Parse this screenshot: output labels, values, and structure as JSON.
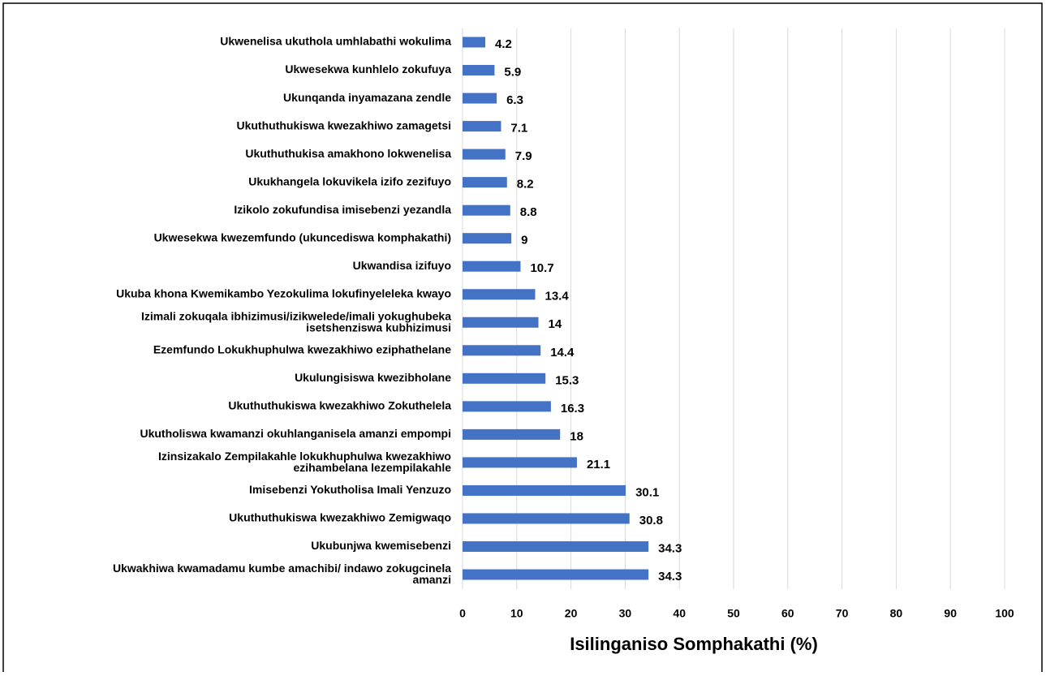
{
  "chart_data": {
    "type": "barh",
    "x_label": "Isilinganiso Somphakathi (%)",
    "categories": [
      "Ukwenelisa ukuthola umhlabathi wokulima",
      "Ukwesekwa kunhlelo zokufuya",
      "Ukunqanda inyamazana zendle",
      "Ukuthuthukiswa kwezakhiwo zamagetsi",
      "Ukuthuthukisa amakhono lokwenelisa",
      "Ukukhangela lokuvikela izifo zezifuyo",
      "Izikolo zokufundisa imisebenzi yezandla",
      "Ukwesekwa kwezemfundo (ukuncediswa komphakathi)",
      "Ukwandisa izifuyo",
      "Ukuba khona Kwemikambo Yezokulima lokufinyeleleka kwayo",
      "Izimali zokuqala ibhizimusi/izikwelede/imali yokughubeka isetshenziswa kubhizimusi",
      "Ezemfundo Lokukhuphulwa kwezakhiwo eziphathelane",
      "Ukulungisiswa kwezibholane",
      "Ukuthuthukiswa kwezakhiwo Zokuthelela",
      "Ukutholiswa kwamanzi okuhlanganisela amanzi empompi",
      "Izinsizakalo Zempilakahle lokukhuphulwa kwezakhiwo ezihambelana lezempilakahle",
      "Imisebenzi Yokutholisa Imali Yenzuzo",
      "Ukuthuthukiswa kwezakhiwo Zemigwaqo",
      "Ukubunjwa kwemisebenzi",
      "Ukwakhiwa kwamadamu kumbe amachibi/ indawo zokugcinela amanzi"
    ],
    "values": [
      4.2,
      5.9,
      6.3,
      7.1,
      7.9,
      8.2,
      8.8,
      9,
      10.7,
      13.4,
      14,
      14.4,
      15.3,
      16.3,
      18,
      21.1,
      30.1,
      30.8,
      34.3,
      34.3
    ],
    "color": "#4472c4",
    "xlim": [
      0,
      100
    ],
    "xticks": [
      0,
      10,
      20,
      30,
      40,
      50,
      60,
      70,
      80,
      90,
      100
    ],
    "grid": true
  }
}
